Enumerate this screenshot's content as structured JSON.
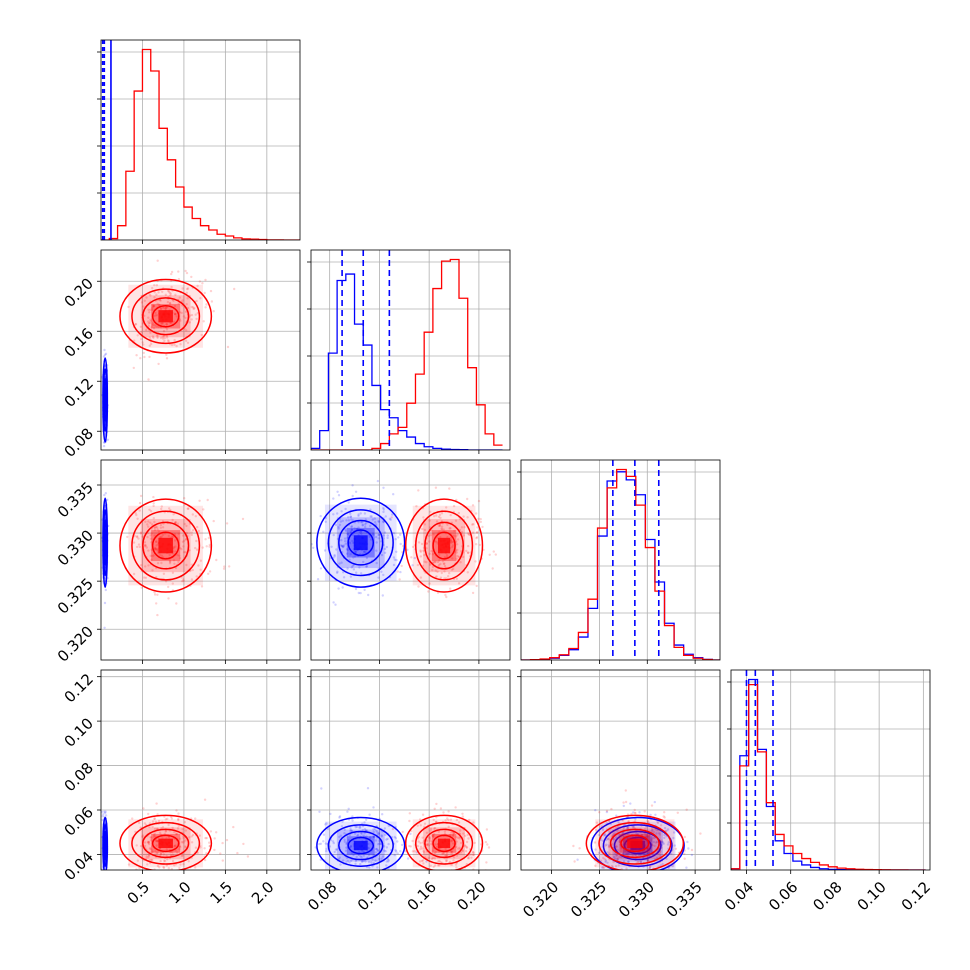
{
  "chart_data": {
    "type": "corner",
    "grid": true,
    "colors": {
      "series_a": "#0000ff",
      "series_b": "#ff0000"
    },
    "series": [
      {
        "color": "#0000ff",
        "means": [
          0.05,
          0.105,
          0.329,
          0.044
        ],
        "sds": [
          0.012,
          0.016,
          0.0022,
          0.006
        ],
        "quantile_lines": [
          [
            0.02,
            0.04,
            0.12
          ],
          [
            0.09,
            0.107,
            0.128
          ],
          [
            0.3264,
            0.3287,
            0.3312
          ],
          [
            0.04,
            0.044,
            0.052
          ]
        ]
      },
      {
        "color": "#ff0000",
        "means": [
          0.78,
          0.172,
          0.3287,
          0.045
        ],
        "sds": [
          0.25,
          0.014,
          0.0023,
          0.006
        ]
      }
    ],
    "parameters": [
      {
        "range": [
          0.0,
          2.4
        ],
        "ticks": [
          0.5,
          1.0,
          1.5,
          2.0
        ],
        "tick_labels": [
          "0.5",
          "1.0",
          "1.5",
          "2.0"
        ]
      },
      {
        "range": [
          0.065,
          0.225
        ],
        "ticks": [
          0.08,
          0.12,
          0.16,
          0.2
        ],
        "tick_labels": [
          "0.08",
          "0.12",
          "0.16",
          "0.20"
        ]
      },
      {
        "range": [
          0.3168,
          0.3376
        ],
        "ticks": [
          0.32,
          0.325,
          0.33,
          0.335
        ],
        "tick_labels": [
          "0.320",
          "0.325",
          "0.330",
          "0.335"
        ]
      },
      {
        "range": [
          0.033,
          0.123
        ],
        "ticks": [
          0.04,
          0.06,
          0.08,
          0.1,
          0.12
        ],
        "tick_labels": [
          "0.04",
          "0.06",
          "0.08",
          "0.10",
          "0.12"
        ]
      }
    ],
    "histograms": [
      {
        "bins": [
          0.0,
          0.1,
          0.2,
          0.3,
          0.4,
          0.5,
          0.6,
          0.7,
          0.8,
          0.9,
          1.0,
          1.1,
          1.2,
          1.3,
          1.4,
          1.5,
          1.6,
          1.7,
          1.8,
          1.9,
          2.0,
          2.1,
          2.2,
          2.3,
          2.4
        ],
        "counts_series_b": [
          0,
          10,
          100,
          480,
          1040,
          1330,
          1180,
          780,
          560,
          370,
          230,
          150,
          100,
          70,
          40,
          28,
          15,
          8,
          6,
          3,
          1,
          1,
          0,
          0
        ]
      },
      {
        "bins": [
          0.065,
          0.072,
          0.079,
          0.086,
          0.093,
          0.1,
          0.107,
          0.114,
          0.121,
          0.128,
          0.135,
          0.142,
          0.149,
          0.156,
          0.163,
          0.17,
          0.177,
          0.184,
          0.191,
          0.198,
          0.205,
          0.212,
          0.219
        ],
        "counts_series_a": [
          10,
          120,
          600,
          1050,
          1090,
          780,
          650,
          400,
          250,
          200,
          120,
          80,
          40,
          20,
          10,
          5,
          3,
          2,
          0,
          0,
          0,
          0
        ],
        "counts_series_b": [
          0,
          0,
          0,
          0,
          0,
          0,
          0,
          10,
          40,
          100,
          140,
          290,
          470,
          730,
          1000,
          1170,
          1180,
          940,
          510,
          280,
          100,
          30
        ]
      },
      {
        "bins": [
          0.3168,
          0.3178,
          0.3188,
          0.3198,
          0.3208,
          0.3218,
          0.3228,
          0.3238,
          0.3248,
          0.3258,
          0.3268,
          0.3278,
          0.3288,
          0.3298,
          0.3308,
          0.3318,
          0.3328,
          0.3338,
          0.3348,
          0.3358,
          0.3368,
          0.3376
        ],
        "counts_series_a": [
          0,
          2,
          5,
          15,
          40,
          90,
          200,
          450,
          1080,
          1560,
          1640,
          1570,
          1440,
          1050,
          680,
          320,
          130,
          50,
          20,
          5,
          0
        ],
        "counts_series_b": [
          0,
          3,
          8,
          20,
          45,
          100,
          240,
          530,
          1150,
          1500,
          1660,
          1600,
          1350,
          980,
          600,
          300,
          110,
          40,
          15,
          4,
          0
        ]
      },
      {
        "bins": [
          0.033,
          0.037,
          0.041,
          0.045,
          0.049,
          0.053,
          0.057,
          0.061,
          0.065,
          0.069,
          0.073,
          0.077,
          0.081,
          0.085,
          0.089,
          0.093,
          0.097,
          0.101,
          0.105,
          0.109,
          0.113,
          0.117,
          0.121
        ],
        "counts_series_a": [
          10,
          900,
          1500,
          950,
          500,
          230,
          130,
          70,
          40,
          20,
          10,
          5,
          3,
          2,
          1,
          1,
          0,
          0,
          0,
          0,
          0,
          0
        ],
        "counts_series_b": [
          10,
          820,
          1460,
          930,
          530,
          280,
          190,
          130,
          90,
          60,
          40,
          25,
          15,
          10,
          6,
          4,
          3,
          2,
          1,
          1,
          0,
          0
        ]
      }
    ]
  }
}
